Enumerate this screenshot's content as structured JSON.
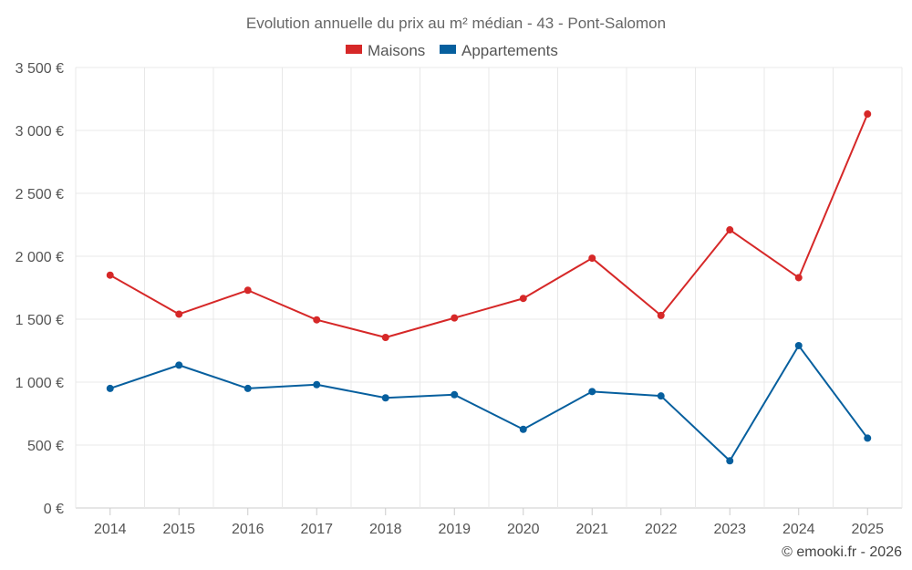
{
  "chart_data": {
    "type": "line",
    "title": "Evolution annuelle du prix au m² médian - 43 - Pont-Salomon",
    "categories": [
      "2014",
      "2015",
      "2016",
      "2017",
      "2018",
      "2019",
      "2020",
      "2021",
      "2022",
      "2023",
      "2024",
      "2025"
    ],
    "series": [
      {
        "name": "Maisons",
        "color": "#d62828",
        "values": [
          1850,
          1540,
          1730,
          1495,
          1355,
          1510,
          1665,
          1985,
          1530,
          2210,
          1830,
          3130
        ]
      },
      {
        "name": "Appartements",
        "color": "#065f9e",
        "values": [
          950,
          1135,
          950,
          980,
          875,
          900,
          625,
          925,
          890,
          375,
          1290,
          555
        ]
      }
    ],
    "ylim": [
      0,
      3500
    ],
    "ytick_values": [
      0,
      500,
      1000,
      1500,
      2000,
      2500,
      3000,
      3500
    ],
    "ytick_labels": [
      "0 €",
      "500 €",
      "1 000 €",
      "1 500 €",
      "2 000 €",
      "2 500 €",
      "3 000 €",
      "3 500 €"
    ],
    "xlabel": "",
    "ylabel": "",
    "grid": true,
    "legend_position": "top-center",
    "credit": "© emooki.fr - 2026"
  }
}
